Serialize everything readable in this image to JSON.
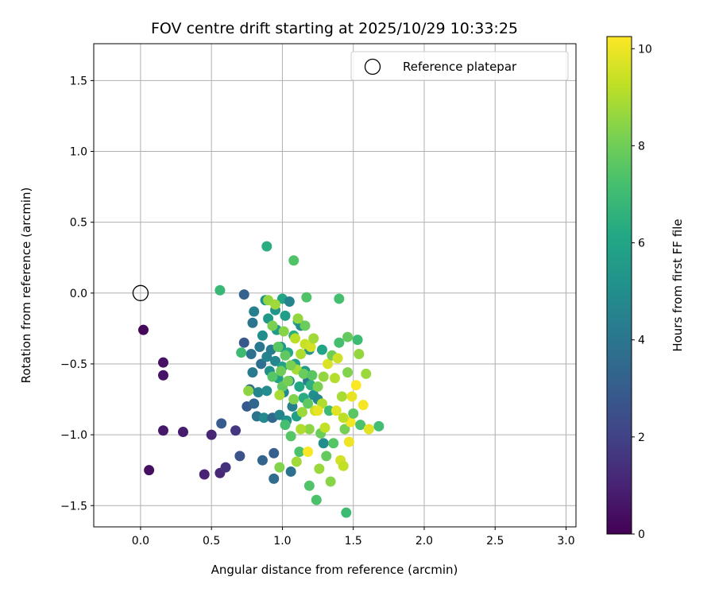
{
  "chart_data": {
    "type": "scatter",
    "title": "FOV centre drift starting at 2025/10/29 10:33:25",
    "xlabel": "Angular distance from reference (arcmin)",
    "ylabel": "Rotation from reference (arcmin)",
    "xlim": [
      -0.33,
      3.07
    ],
    "ylim": [
      -1.65,
      1.76
    ],
    "xticks": [
      0.0,
      0.5,
      1.0,
      1.5,
      2.0,
      2.5,
      3.0
    ],
    "xtick_labels": [
      "0.0",
      "0.5",
      "1.0",
      "1.5",
      "2.0",
      "2.5",
      "3.0"
    ],
    "yticks": [
      -1.5,
      -1.0,
      -0.5,
      0.0,
      0.5,
      1.0,
      1.5
    ],
    "ytick_labels": [
      "−1.5",
      "−1.0",
      "−0.5",
      "0.0",
      "0.5",
      "1.0",
      "1.5"
    ],
    "grid": true,
    "legend": {
      "position": "top-right",
      "label": "Reference platepar"
    },
    "reference_point": {
      "x": 0.0,
      "y": 0.0
    },
    "colorbar": {
      "label": "Hours from first FF file",
      "min": 0,
      "max": 10.25,
      "ticks": [
        0,
        2,
        4,
        6,
        8,
        10
      ],
      "tick_labels": [
        "0",
        "2",
        "4",
        "6",
        "8",
        "10"
      ],
      "colormap": "viridis"
    },
    "points": [
      {
        "x": 0.02,
        "y": -0.26,
        "h": 0.2
      },
      {
        "x": 0.06,
        "y": -1.25,
        "h": 0.4
      },
      {
        "x": 0.16,
        "y": -0.49,
        "h": 0.5
      },
      {
        "x": 0.16,
        "y": -0.58,
        "h": 0.6
      },
      {
        "x": 0.16,
        "y": -0.97,
        "h": 0.7
      },
      {
        "x": 0.3,
        "y": -0.98,
        "h": 0.8
      },
      {
        "x": 0.45,
        "y": -1.28,
        "h": 1.0
      },
      {
        "x": 0.5,
        "y": -1.0,
        "h": 1.1
      },
      {
        "x": 0.56,
        "y": -1.27,
        "h": 1.2
      },
      {
        "x": 0.6,
        "y": -1.23,
        "h": 1.4
      },
      {
        "x": 0.67,
        "y": -0.97,
        "h": 1.6
      },
      {
        "x": 0.57,
        "y": -0.92,
        "h": 3.0
      },
      {
        "x": 0.7,
        "y": -1.15,
        "h": 2.6
      },
      {
        "x": 0.73,
        "y": -0.35,
        "h": 2.8
      },
      {
        "x": 0.73,
        "y": -0.01,
        "h": 3.2
      },
      {
        "x": 0.75,
        "y": -0.8,
        "h": 2.9
      },
      {
        "x": 0.77,
        "y": -0.68,
        "h": 3.6
      },
      {
        "x": 0.78,
        "y": -0.43,
        "h": 3.8
      },
      {
        "x": 0.79,
        "y": -0.21,
        "h": 4.0
      },
      {
        "x": 0.79,
        "y": -0.56,
        "h": 4.2
      },
      {
        "x": 0.8,
        "y": -0.78,
        "h": 3.4
      },
      {
        "x": 0.8,
        "y": -0.13,
        "h": 4.4
      },
      {
        "x": 0.82,
        "y": -0.87,
        "h": 3.9
      },
      {
        "x": 0.83,
        "y": -0.7,
        "h": 4.6
      },
      {
        "x": 0.84,
        "y": -0.38,
        "h": 4.1
      },
      {
        "x": 0.85,
        "y": -0.5,
        "h": 3.7
      },
      {
        "x": 0.86,
        "y": -0.3,
        "h": 5.0
      },
      {
        "x": 0.86,
        "y": -1.18,
        "h": 3.3
      },
      {
        "x": 0.87,
        "y": -0.88,
        "h": 4.8
      },
      {
        "x": 0.88,
        "y": -0.05,
        "h": 5.2
      },
      {
        "x": 0.89,
        "y": -0.45,
        "h": 4.5
      },
      {
        "x": 0.89,
        "y": -0.69,
        "h": 4.9
      },
      {
        "x": 0.9,
        "y": -0.18,
        "h": 5.5
      },
      {
        "x": 0.91,
        "y": -0.55,
        "h": 5.1
      },
      {
        "x": 0.92,
        "y": -0.4,
        "h": 4.3
      },
      {
        "x": 0.93,
        "y": -0.88,
        "h": 3.5
      },
      {
        "x": 0.94,
        "y": -1.31,
        "h": 3.6
      },
      {
        "x": 0.94,
        "y": -1.13,
        "h": 3.1
      },
      {
        "x": 0.95,
        "y": -0.12,
        "h": 5.3
      },
      {
        "x": 0.95,
        "y": -0.48,
        "h": 4.7
      },
      {
        "x": 0.96,
        "y": -0.26,
        "h": 5.6
      },
      {
        "x": 0.97,
        "y": -0.6,
        "h": 5.8
      },
      {
        "x": 0.98,
        "y": -0.86,
        "h": 4.6
      },
      {
        "x": 0.99,
        "y": -0.38,
        "h": 5.4
      },
      {
        "x": 1.0,
        "y": -0.04,
        "h": 6.0
      },
      {
        "x": 1.0,
        "y": -0.52,
        "h": 5.9
      },
      {
        "x": 1.01,
        "y": -0.7,
        "h": 4.8
      },
      {
        "x": 1.02,
        "y": -0.16,
        "h": 5.7
      },
      {
        "x": 1.03,
        "y": -0.9,
        "h": 5.2
      },
      {
        "x": 1.04,
        "y": -0.42,
        "h": 6.2
      },
      {
        "x": 1.05,
        "y": -0.06,
        "h": 4.5
      },
      {
        "x": 1.05,
        "y": -0.62,
        "h": 5.0
      },
      {
        "x": 1.06,
        "y": -1.26,
        "h": 3.8
      },
      {
        "x": 1.07,
        "y": -0.8,
        "h": 4.4
      },
      {
        "x": 1.08,
        "y": -0.3,
        "h": 6.4
      },
      {
        "x": 1.09,
        "y": -0.5,
        "h": 5.6
      },
      {
        "x": 1.1,
        "y": -0.87,
        "h": 5.8
      },
      {
        "x": 1.11,
        "y": -0.2,
        "h": 5.9
      },
      {
        "x": 1.12,
        "y": -0.66,
        "h": 6.1
      },
      {
        "x": 1.13,
        "y": -0.23,
        "h": 4.9
      },
      {
        "x": 1.15,
        "y": -0.74,
        "h": 6.3
      },
      {
        "x": 1.16,
        "y": -0.55,
        "h": 5.5
      },
      {
        "x": 1.18,
        "y": -0.62,
        "h": 4.2
      },
      {
        "x": 1.19,
        "y": -0.4,
        "h": 5.3
      },
      {
        "x": 1.2,
        "y": -0.65,
        "h": 6.5
      },
      {
        "x": 1.22,
        "y": -0.72,
        "h": 5.1
      },
      {
        "x": 1.25,
        "y": -0.75,
        "h": 4.7
      },
      {
        "x": 1.28,
        "y": -0.4,
        "h": 6.0
      },
      {
        "x": 1.29,
        "y": -1.06,
        "h": 4.9
      },
      {
        "x": 0.89,
        "y": 0.33,
        "h": 6.4
      },
      {
        "x": 0.56,
        "y": 0.02,
        "h": 6.8
      },
      {
        "x": 0.71,
        "y": -0.42,
        "h": 7.0
      },
      {
        "x": 1.08,
        "y": 0.23,
        "h": 7.4
      },
      {
        "x": 0.9,
        "y": -0.05,
        "h": 8.6
      },
      {
        "x": 0.93,
        "y": -0.23,
        "h": 8.2
      },
      {
        "x": 0.95,
        "y": -0.08,
        "h": 8.8
      },
      {
        "x": 0.97,
        "y": -0.38,
        "h": 7.6
      },
      {
        "x": 0.99,
        "y": -0.55,
        "h": 8.0
      },
      {
        "x": 1.0,
        "y": -0.66,
        "h": 7.8
      },
      {
        "x": 1.01,
        "y": -0.27,
        "h": 8.4
      },
      {
        "x": 1.02,
        "y": -0.93,
        "h": 7.2
      },
      {
        "x": 1.04,
        "y": -0.62,
        "h": 8.1
      },
      {
        "x": 1.06,
        "y": -1.01,
        "h": 7.5
      },
      {
        "x": 1.08,
        "y": -0.75,
        "h": 8.3
      },
      {
        "x": 1.09,
        "y": -0.32,
        "h": 9.2
      },
      {
        "x": 1.1,
        "y": -0.54,
        "h": 8.9
      },
      {
        "x": 1.11,
        "y": -0.18,
        "h": 8.6
      },
      {
        "x": 1.12,
        "y": -1.12,
        "h": 7.3
      },
      {
        "x": 1.13,
        "y": -0.43,
        "h": 9.0
      },
      {
        "x": 1.14,
        "y": -0.84,
        "h": 8.7
      },
      {
        "x": 1.15,
        "y": -0.57,
        "h": 7.9
      },
      {
        "x": 1.16,
        "y": -0.36,
        "h": 9.4
      },
      {
        "x": 1.17,
        "y": -0.03,
        "h": 7.4
      },
      {
        "x": 1.18,
        "y": -0.78,
        "h": 7.7
      },
      {
        "x": 1.19,
        "y": -0.96,
        "h": 8.5
      },
      {
        "x": 1.2,
        "y": -0.38,
        "h": 9.6
      },
      {
        "x": 1.21,
        "y": -0.58,
        "h": 7.6
      },
      {
        "x": 1.22,
        "y": -0.32,
        "h": 8.8
      },
      {
        "x": 1.23,
        "y": -0.83,
        "h": 9.4
      },
      {
        "x": 1.24,
        "y": -1.46,
        "h": 7.3
      },
      {
        "x": 1.25,
        "y": -0.66,
        "h": 8.2
      },
      {
        "x": 1.26,
        "y": -1.24,
        "h": 8.7
      },
      {
        "x": 1.27,
        "y": -0.99,
        "h": 7.9
      },
      {
        "x": 1.28,
        "y": -0.78,
        "h": 9.0
      },
      {
        "x": 1.29,
        "y": -0.59,
        "h": 8.6
      },
      {
        "x": 1.3,
        "y": -0.95,
        "h": 9.3
      },
      {
        "x": 1.31,
        "y": -1.15,
        "h": 7.8
      },
      {
        "x": 1.32,
        "y": -0.5,
        "h": 9.7
      },
      {
        "x": 1.33,
        "y": -0.83,
        "h": 6.9
      },
      {
        "x": 1.34,
        "y": -1.33,
        "h": 8.4
      },
      {
        "x": 1.35,
        "y": -0.44,
        "h": 8.0
      },
      {
        "x": 1.36,
        "y": -1.06,
        "h": 7.5
      },
      {
        "x": 1.37,
        "y": -0.6,
        "h": 9.1
      },
      {
        "x": 1.38,
        "y": -0.83,
        "h": 9.8
      },
      {
        "x": 1.39,
        "y": -0.46,
        "h": 9.5
      },
      {
        "x": 1.4,
        "y": -0.04,
        "h": 7.2
      },
      {
        "x": 1.41,
        "y": -1.18,
        "h": 9.6
      },
      {
        "x": 1.42,
        "y": -0.73,
        "h": 8.9
      },
      {
        "x": 1.43,
        "y": -1.22,
        "h": 9.3
      },
      {
        "x": 1.44,
        "y": -0.96,
        "h": 8.1
      },
      {
        "x": 1.45,
        "y": -1.55,
        "h": 7.0
      },
      {
        "x": 1.46,
        "y": -0.56,
        "h": 8.3
      },
      {
        "x": 1.47,
        "y": -1.05,
        "h": 10.0
      },
      {
        "x": 1.48,
        "y": -0.91,
        "h": 10.1
      },
      {
        "x": 1.49,
        "y": -0.73,
        "h": 9.9
      },
      {
        "x": 1.5,
        "y": -0.85,
        "h": 7.6
      },
      {
        "x": 1.52,
        "y": -0.65,
        "h": 10.2
      },
      {
        "x": 1.53,
        "y": -0.33,
        "h": 7.0
      },
      {
        "x": 1.54,
        "y": -0.43,
        "h": 8.6
      },
      {
        "x": 1.55,
        "y": -0.93,
        "h": 7.3
      },
      {
        "x": 1.57,
        "y": -0.79,
        "h": 10.1
      },
      {
        "x": 1.59,
        "y": -0.57,
        "h": 8.7
      },
      {
        "x": 1.61,
        "y": -0.96,
        "h": 9.8
      },
      {
        "x": 1.68,
        "y": -0.94,
        "h": 7.1
      },
      {
        "x": 1.4,
        "y": -0.35,
        "h": 7.2
      },
      {
        "x": 1.25,
        "y": -0.83,
        "h": 9.9
      },
      {
        "x": 1.18,
        "y": -1.12,
        "h": 10.2
      },
      {
        "x": 1.1,
        "y": -1.19,
        "h": 8.8
      },
      {
        "x": 0.98,
        "y": -1.23,
        "h": 8.3
      },
      {
        "x": 0.93,
        "y": -0.59,
        "h": 7.5
      },
      {
        "x": 0.98,
        "y": -0.72,
        "h": 8.9
      },
      {
        "x": 1.02,
        "y": -0.44,
        "h": 7.7
      },
      {
        "x": 1.06,
        "y": -0.51,
        "h": 8.2
      },
      {
        "x": 0.76,
        "y": -0.69,
        "h": 8.5
      },
      {
        "x": 1.13,
        "y": -0.96,
        "h": 9.0
      },
      {
        "x": 1.19,
        "y": -1.36,
        "h": 7.4
      },
      {
        "x": 1.46,
        "y": -0.31,
        "h": 7.8
      },
      {
        "x": 1.16,
        "y": -0.23,
        "h": 7.9
      },
      {
        "x": 1.43,
        "y": -0.88,
        "h": 9.2
      }
    ]
  }
}
